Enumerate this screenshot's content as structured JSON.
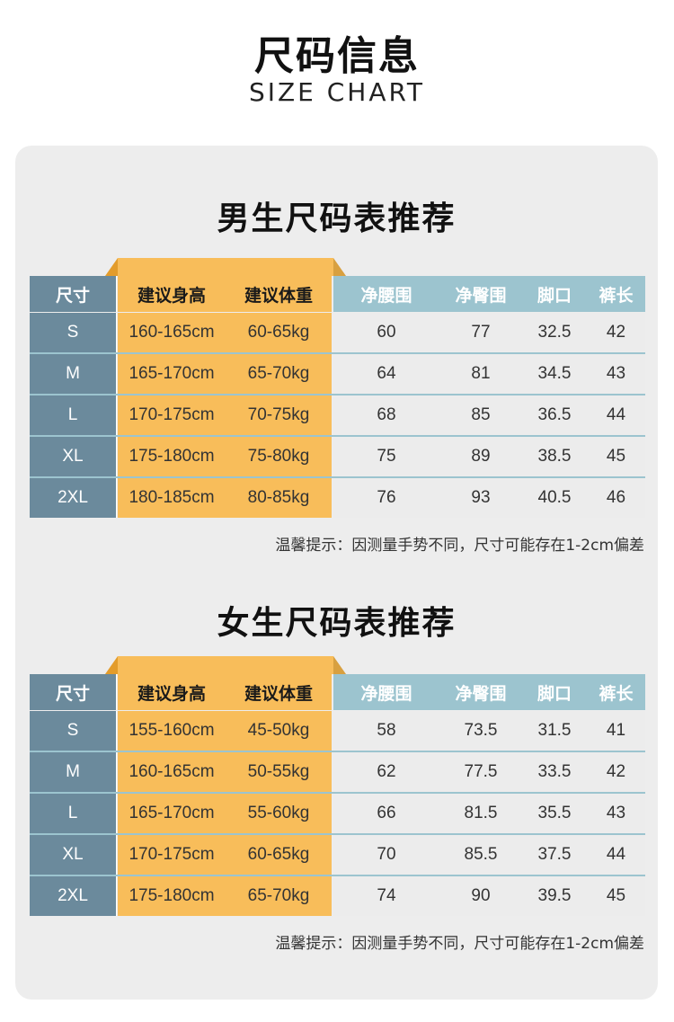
{
  "header": {
    "title_cn": "尺码信息",
    "title_en": "SIZE CHART"
  },
  "columns": [
    "尺寸",
    "建议身高",
    "建议体重",
    "净腰围",
    "净臀围",
    "脚口",
    "裤长"
  ],
  "men": {
    "title": "男生尺码表推荐",
    "rows": [
      [
        "S",
        "160-165cm",
        "60-65kg",
        "60",
        "77",
        "32.5",
        "42"
      ],
      [
        "M",
        "165-170cm",
        "65-70kg",
        "64",
        "81",
        "34.5",
        "43"
      ],
      [
        "L",
        "170-175cm",
        "70-75kg",
        "68",
        "85",
        "36.5",
        "44"
      ],
      [
        "XL",
        "175-180cm",
        "75-80kg",
        "75",
        "89",
        "38.5",
        "45"
      ],
      [
        "2XL",
        "180-185cm",
        "80-85kg",
        "76",
        "93",
        "40.5",
        "46"
      ]
    ],
    "note": "温馨提示：因测量手势不同，尺寸可能存在1-2cm偏差"
  },
  "women": {
    "title": "女生尺码表推荐",
    "rows": [
      [
        "S",
        "155-160cm",
        "45-50kg",
        "58",
        "73.5",
        "31.5",
        "41"
      ],
      [
        "M",
        "160-165cm",
        "50-55kg",
        "62",
        "77.5",
        "33.5",
        "42"
      ],
      [
        "L",
        "165-170cm",
        "55-60kg",
        "66",
        "81.5",
        "35.5",
        "43"
      ],
      [
        "XL",
        "170-175cm",
        "60-65kg",
        "70",
        "85.5",
        "37.5",
        "44"
      ],
      [
        "2XL",
        "175-180cm",
        "65-70kg",
        "74",
        "90",
        "39.5",
        "45"
      ]
    ],
    "note": "温馨提示：因测量手势不同，尺寸可能存在1-2cm偏差"
  },
  "colors": {
    "size_col": "#6b8a9c",
    "highlight": "#f8bd5a",
    "header_teal": "#9cc4cf",
    "panel": "#ededed"
  }
}
